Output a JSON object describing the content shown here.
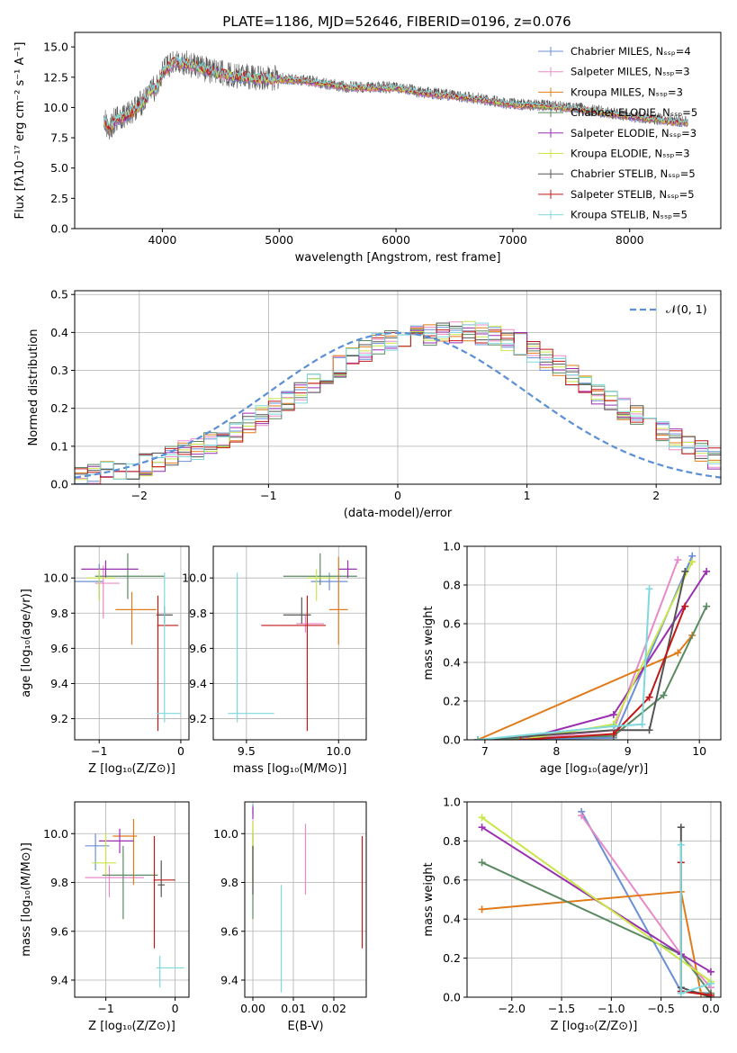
{
  "figure_title": "PLATE=1186, MJD=52646, FIBERID=0196, z=0.076",
  "colors": {
    "chabrier_miles": "#6b8fd6",
    "salpeter_miles": "#e88ac8",
    "kroupa_miles": "#e07b1a",
    "chabrier_elodie": "#5a8a62",
    "salpeter_elodie": "#9a2fb0",
    "kroupa_elodie": "#c9e64a",
    "chabrier_stelib": "#555555",
    "salpeter_stelib": "#c01818",
    "kroupa_stelib": "#7fd8dc",
    "normal_curve": "#5b8fd6",
    "grid": "#b0b0b0"
  },
  "chart_data": [
    {
      "type": "line",
      "title": "PLATE=1186, MJD=52646, FIBERID=0196, z=0.076",
      "xlabel": "wavelength [Angstrom, rest frame]",
      "ylabel": "Flux [fλ10⁻¹⁷ erg cm⁻² s⁻¹ A⁻¹]",
      "xlim": [
        3250,
        8780
      ],
      "ylim": [
        0,
        16.2
      ],
      "xticks": [
        4000,
        5000,
        6000,
        7000,
        8000
      ],
      "yticks": [
        0.0,
        2.5,
        5.0,
        7.5,
        10.0,
        12.5,
        15.0
      ],
      "grid": false,
      "legend_position": "top-right",
      "data_range": [
        3500,
        8500
      ],
      "spectrum_envelope": {
        "x": [
          3500,
          3550,
          3600,
          3700,
          3800,
          3850,
          3900,
          3950,
          4000,
          4100,
          4200,
          4300,
          4400,
          4600,
          4800,
          5000,
          5200,
          5400,
          5600,
          5800,
          6000,
          6200,
          6400,
          6600,
          6800,
          7000,
          7200,
          7400,
          7600,
          7800,
          8000,
          8200,
          8400,
          8500
        ],
        "y": [
          8.8,
          8.3,
          9.0,
          9.3,
          10.1,
          10.5,
          11.5,
          11.5,
          12.8,
          13.8,
          13.6,
          13.3,
          13.0,
          12.6,
          12.4,
          12.3,
          12.2,
          11.9,
          11.6,
          11.6,
          11.6,
          11.2,
          11.0,
          10.8,
          10.5,
          10.2,
          10.1,
          10.0,
          9.8,
          9.5,
          9.2,
          9.0,
          8.8,
          8.7
        ]
      },
      "series": [
        {
          "name": "Chabrier MILES, N_SSP=4"
        },
        {
          "name": "Salpeter MILES, N_SSP=3"
        },
        {
          "name": "Kroupa MILES, N_SSP=3"
        },
        {
          "name": "Chabrier ELODIE, N_SSP=5"
        },
        {
          "name": "Salpeter ELODIE, N_SSP=3"
        },
        {
          "name": "Kroupa ELODIE, N_SSP=3"
        },
        {
          "name": "Chabrier STELIB, N_SSP=5"
        },
        {
          "name": "Salpeter STELIB, N_SSP=5"
        },
        {
          "name": "Kroupa STELIB, N_SSP=5"
        }
      ]
    },
    {
      "type": "bar",
      "xlabel": "(data-model)/error",
      "ylabel": "Normed distribution",
      "xlim": [
        -2.5,
        2.5
      ],
      "ylim": [
        0,
        0.51
      ],
      "xticks": [
        -2,
        -1,
        0,
        1,
        2
      ],
      "yticks": [
        0.0,
        0.1,
        0.2,
        0.3,
        0.4,
        0.5
      ],
      "grid": true,
      "legend_position": "top-right",
      "legend": [
        "𝒩(0, 1)"
      ],
      "normal_curve": {
        "mean": 0,
        "sigma": 1
      },
      "histogram_bins": {
        "start": -2.5,
        "width": 0.1,
        "count": 50
      },
      "histogram_mean": [
        0.02,
        0.025,
        0.03,
        0.035,
        0.04,
        0.05,
        0.06,
        0.075,
        0.085,
        0.09,
        0.11,
        0.125,
        0.14,
        0.16,
        0.18,
        0.2,
        0.22,
        0.24,
        0.27,
        0.29,
        0.31,
        0.33,
        0.35,
        0.37,
        0.38,
        0.39,
        0.39,
        0.395,
        0.4,
        0.4,
        0.4,
        0.395,
        0.39,
        0.38,
        0.37,
        0.35,
        0.33,
        0.31,
        0.29,
        0.27,
        0.24,
        0.22,
        0.2,
        0.18,
        0.16,
        0.14,
        0.12,
        0.1,
        0.085,
        0.07
      ]
    },
    {
      "type": "scatter",
      "subtype": "errorbar",
      "xlabel": "Z [log₁₀(Z/Z⊙)]",
      "ylabel": "age  [log₁₀(age/yr)]",
      "xlim": [
        -1.3,
        0.1
      ],
      "ylim": [
        9.08,
        10.18
      ],
      "xticks": [
        -1,
        0
      ],
      "yticks": [
        9.2,
        9.4,
        9.6,
        9.8,
        10.0
      ],
      "grid": true,
      "points": [
        {
          "series": "Chabrier MILES",
          "x": -1.0,
          "y": 9.98,
          "xerr": [
            0.3,
            0.05
          ],
          "yerr": [
            0.1,
            0.1
          ]
        },
        {
          "series": "Salpeter MILES",
          "x": -0.95,
          "y": 9.97,
          "xerr": [
            0.1,
            0.2
          ],
          "yerr": [
            0.2,
            0.1
          ]
        },
        {
          "series": "Kroupa MILES",
          "x": -0.6,
          "y": 9.82,
          "xerr": [
            0.2,
            0.3
          ],
          "yerr": [
            0.2,
            0.1
          ]
        },
        {
          "series": "Chabrier ELODIE",
          "x": -0.65,
          "y": 10.01,
          "xerr": [
            0.4,
            0.45
          ],
          "yerr": [
            0.13,
            0.13
          ]
        },
        {
          "series": "Salpeter ELODIE",
          "x": -0.92,
          "y": 10.05,
          "xerr": [
            0.3,
            0.4
          ],
          "yerr": [
            0.05,
            0.05
          ]
        },
        {
          "series": "Kroupa ELODIE",
          "x": -1.0,
          "y": 10.0,
          "xerr": [
            0.15,
            0.2
          ],
          "yerr": [
            0.13,
            0.05
          ]
        },
        {
          "series": "Chabrier STELIB",
          "x": -0.2,
          "y": 9.79,
          "xerr": [
            0.1,
            0.1
          ],
          "yerr": [
            0.05,
            0.05
          ]
        },
        {
          "series": "Salpeter STELIB",
          "x": -0.28,
          "y": 9.73,
          "xerr": [
            0.01,
            0.25
          ],
          "yerr": [
            0.6,
            0.17
          ]
        },
        {
          "series": "Kroupa STELIB",
          "x": -0.2,
          "y": 9.23,
          "xerr": [
            0.1,
            0.2
          ],
          "yerr": [
            0.05,
            0.8
          ]
        }
      ]
    },
    {
      "type": "scatter",
      "subtype": "errorbar",
      "xlabel": "mass [log₁₀(M/M⊙)]",
      "ylabel": "",
      "xlim": [
        9.32,
        10.15
      ],
      "ylim": [
        9.08,
        10.18
      ],
      "xticks": [
        9.5,
        10.0
      ],
      "yticks": [
        9.2,
        9.4,
        9.6,
        9.8,
        10.0
      ],
      "grid": true,
      "points": [
        {
          "series": "Chabrier MILES",
          "x": 9.95,
          "y": 9.98,
          "xerr": [
            0.1,
            0.1
          ],
          "yerr": [
            0.05,
            0.05
          ]
        },
        {
          "series": "Salpeter MILES",
          "x": 9.82,
          "y": 9.74,
          "xerr": [
            0.05,
            0.1
          ],
          "yerr": [
            0.05,
            0.05
          ]
        },
        {
          "series": "Kroupa MILES",
          "x": 10.0,
          "y": 9.82,
          "xerr": [
            0.05,
            0.05
          ],
          "yerr": [
            0.2,
            0.3
          ]
        },
        {
          "series": "Chabrier ELODIE",
          "x": 9.9,
          "y": 10.01,
          "xerr": [
            0.2,
            0.2
          ],
          "yerr": [
            0.05,
            0.13
          ]
        },
        {
          "series": "Salpeter ELODIE",
          "x": 10.05,
          "y": 10.05,
          "xerr": [
            0.05,
            0.05
          ],
          "yerr": [
            0.05,
            0.05
          ]
        },
        {
          "series": "Kroupa ELODIE",
          "x": 9.88,
          "y": 10.0,
          "xerr": [
            0.05,
            0.1
          ],
          "yerr": [
            0.13,
            0.05
          ]
        },
        {
          "series": "Chabrier STELIB",
          "x": 9.8,
          "y": 9.79,
          "xerr": [
            0.1,
            0.05
          ],
          "yerr": [
            0.05,
            0.1
          ]
        },
        {
          "series": "Salpeter STELIB",
          "x": 9.83,
          "y": 9.73,
          "xerr": [
            0.25,
            0.1
          ],
          "yerr": [
            0.6,
            0.17
          ]
        },
        {
          "series": "Kroupa STELIB",
          "x": 9.45,
          "y": 9.23,
          "xerr": [
            0.05,
            0.2
          ],
          "yerr": [
            0.05,
            0.8
          ]
        }
      ]
    },
    {
      "type": "line",
      "xlabel": "age  [log₁₀(age/yr)]",
      "ylabel": "mass weight",
      "xlim": [
        6.75,
        10.3
      ],
      "ylim": [
        0,
        1.0
      ],
      "xticks": [
        7,
        8,
        9,
        10
      ],
      "yticks": [
        0.0,
        0.2,
        0.4,
        0.6,
        0.8,
        1.0
      ],
      "grid": true,
      "series": [
        {
          "name": "Chabrier MILES",
          "x": [
            6.9,
            8.8,
            9.9
          ],
          "y": [
            0.0,
            0.01,
            0.95
          ]
        },
        {
          "name": "Salpeter MILES",
          "x": [
            7.5,
            8.8,
            9.7
          ],
          "y": [
            0.0,
            0.05,
            0.93
          ]
        },
        {
          "name": "Kroupa MILES",
          "x": [
            6.9,
            9.7,
            9.9
          ],
          "y": [
            0.0,
            0.45,
            0.54
          ]
        },
        {
          "name": "Chabrier ELODIE",
          "x": [
            6.9,
            8.8,
            9.5,
            10.1
          ],
          "y": [
            0.0,
            0.02,
            0.23,
            0.69
          ]
        },
        {
          "name": "Salpeter ELODIE",
          "x": [
            7.5,
            8.8,
            10.1
          ],
          "y": [
            0.0,
            0.13,
            0.87
          ]
        },
        {
          "name": "Kroupa ELODIE",
          "x": [
            7.5,
            8.8,
            9.9
          ],
          "y": [
            0.0,
            0.08,
            0.92
          ]
        },
        {
          "name": "Chabrier STELIB",
          "x": [
            6.9,
            8.8,
            9.3,
            9.8
          ],
          "y": [
            0.0,
            0.05,
            0.05,
            0.87
          ]
        },
        {
          "name": "Salpeter STELIB",
          "x": [
            7.5,
            8.8,
            9.3,
            9.8
          ],
          "y": [
            0.0,
            0.03,
            0.22,
            0.69
          ]
        },
        {
          "name": "Kroupa STELIB",
          "x": [
            6.9,
            8.8,
            9.2,
            9.3
          ],
          "y": [
            0.0,
            0.07,
            0.08,
            0.78
          ]
        }
      ]
    },
    {
      "type": "scatter",
      "subtype": "errorbar",
      "xlabel": "Z [log₁₀(Z/Z⊙)]",
      "ylabel": "mass [log₁₀(M/M⊙)]",
      "xlim": [
        -1.45,
        0.2
      ],
      "ylim": [
        9.33,
        10.13
      ],
      "xticks": [
        -1,
        0
      ],
      "yticks": [
        9.4,
        9.6,
        9.8,
        10.0
      ],
      "grid": true,
      "points": [
        {
          "series": "Chabrier MILES",
          "x": -1.15,
          "y": 9.95,
          "xerr": [
            0.15,
            0.2
          ],
          "yerr": [
            0.1,
            0.05
          ]
        },
        {
          "series": "Salpeter MILES",
          "x": -0.95,
          "y": 9.82,
          "xerr": [
            0.35,
            0.5
          ],
          "yerr": [
            0.08,
            0.05
          ]
        },
        {
          "series": "Kroupa MILES",
          "x": -0.6,
          "y": 9.99,
          "xerr": [
            0.3,
            0.05
          ],
          "yerr": [
            0.2,
            0.07
          ]
        },
        {
          "series": "Chabrier ELODIE",
          "x": -0.75,
          "y": 9.83,
          "xerr": [
            0.3,
            0.5
          ],
          "yerr": [
            0.18,
            0.12
          ]
        },
        {
          "series": "Salpeter ELODIE",
          "x": -0.8,
          "y": 9.97,
          "xerr": [
            0.3,
            0.2
          ],
          "yerr": [
            0.05,
            0.05
          ]
        },
        {
          "series": "Kroupa ELODIE",
          "x": -1.0,
          "y": 9.88,
          "xerr": [
            0.2,
            0.15
          ],
          "yerr": [
            0.05,
            0.12
          ]
        },
        {
          "series": "Chabrier STELIB",
          "x": -0.2,
          "y": 9.79,
          "xerr": [
            0.05,
            0.05
          ],
          "yerr": [
            0.05,
            0.1
          ]
        },
        {
          "series": "Salpeter STELIB",
          "x": -0.3,
          "y": 9.81,
          "xerr": [
            0.01,
            0.3
          ],
          "yerr": [
            0.28,
            0.18
          ]
        },
        {
          "series": "Kroupa STELIB",
          "x": -0.22,
          "y": 9.45,
          "xerr": [
            0.05,
            0.35
          ],
          "yerr": [
            0.08,
            0.05
          ]
        }
      ]
    },
    {
      "type": "scatter",
      "subtype": "errorbar",
      "xlabel": "E(B-V)",
      "ylabel": "",
      "xlim": [
        -0.002,
        0.028
      ],
      "ylim": [
        9.33,
        10.13
      ],
      "xticks": [
        0.0,
        0.01,
        0.02
      ],
      "yticks": [
        9.4,
        9.6,
        9.8,
        10.0
      ],
      "grid": true,
      "points": [
        {
          "series": "Chabrier MILES",
          "x": 0.0,
          "y": 10.1,
          "yerr": [
            0.02,
            0.02
          ]
        },
        {
          "series": "Salpeter MILES",
          "x": 0.013,
          "y": 9.95,
          "yerr": [
            0.2,
            0.09
          ]
        },
        {
          "series": "Kroupa MILES",
          "x": 0.0,
          "y": 9.9,
          "yerr": [
            0.1,
            0.15
          ]
        },
        {
          "series": "Chabrier ELODIE",
          "x": 0.0,
          "y": 9.8,
          "yerr": [
            0.15,
            0.2
          ]
        },
        {
          "series": "Salpeter ELODIE",
          "x": 0.0,
          "y": 10.09,
          "yerr": [
            0.03,
            0.02
          ]
        },
        {
          "series": "Kroupa ELODIE",
          "x": 0.0,
          "y": 9.9,
          "yerr": [
            0.1,
            0.15
          ]
        },
        {
          "series": "Chabrier STELIB",
          "x": 0.0,
          "y": 9.85,
          "yerr": [
            0.1,
            0.1
          ]
        },
        {
          "series": "Salpeter STELIB",
          "x": 0.027,
          "y": 9.75,
          "yerr": [
            0.22,
            0.24
          ]
        },
        {
          "series": "Kroupa STELIB",
          "x": 0.007,
          "y": 9.55,
          "yerr": [
            0.2,
            0.24
          ]
        }
      ]
    },
    {
      "type": "line",
      "xlabel": "Z [log₁₀(Z/Z⊙)]",
      "ylabel": "mass weight",
      "xlim": [
        -2.45,
        0.1
      ],
      "ylim": [
        0,
        1.0
      ],
      "xticks": [
        -2.0,
        -1.5,
        -1.0,
        -0.5,
        0.0
      ],
      "yticks": [
        0.0,
        0.2,
        0.4,
        0.6,
        0.8,
        1.0
      ],
      "grid": true,
      "series": [
        {
          "name": "Chabrier MILES",
          "x": [
            -1.3,
            -0.3,
            0.0
          ],
          "y": [
            0.95,
            0.03,
            0.02
          ]
        },
        {
          "name": "Salpeter MILES",
          "x": [
            -1.3,
            -0.3,
            0.0
          ],
          "y": [
            0.93,
            0.22,
            0.05
          ]
        },
        {
          "name": "Kroupa MILES",
          "x": [
            -2.3,
            -0.3,
            -0.1,
            0.0
          ],
          "y": [
            0.45,
            0.54,
            0.02,
            0.0
          ]
        },
        {
          "name": "Chabrier ELODIE",
          "x": [
            -2.3,
            -0.3,
            0.0
          ],
          "y": [
            0.69,
            0.22,
            0.02
          ]
        },
        {
          "name": "Salpeter ELODIE",
          "x": [
            -2.3,
            -0.3,
            0.0
          ],
          "y": [
            0.87,
            0.22,
            0.13
          ]
        },
        {
          "name": "Kroupa ELODIE",
          "x": [
            -2.3,
            0.0
          ],
          "y": [
            0.92,
            0.08
          ]
        },
        {
          "name": "Chabrier STELIB",
          "x": [
            -0.3,
            -0.3,
            0.0
          ],
          "y": [
            0.87,
            0.05,
            0.0
          ]
        },
        {
          "name": "Salpeter STELIB",
          "x": [
            -0.3,
            -0.3,
            0.0
          ],
          "y": [
            0.69,
            0.03,
            0.01
          ]
        },
        {
          "name": "Kroupa STELIB",
          "x": [
            -0.3,
            -0.3,
            0.0
          ],
          "y": [
            0.78,
            0.02,
            0.07
          ]
        }
      ]
    }
  ]
}
